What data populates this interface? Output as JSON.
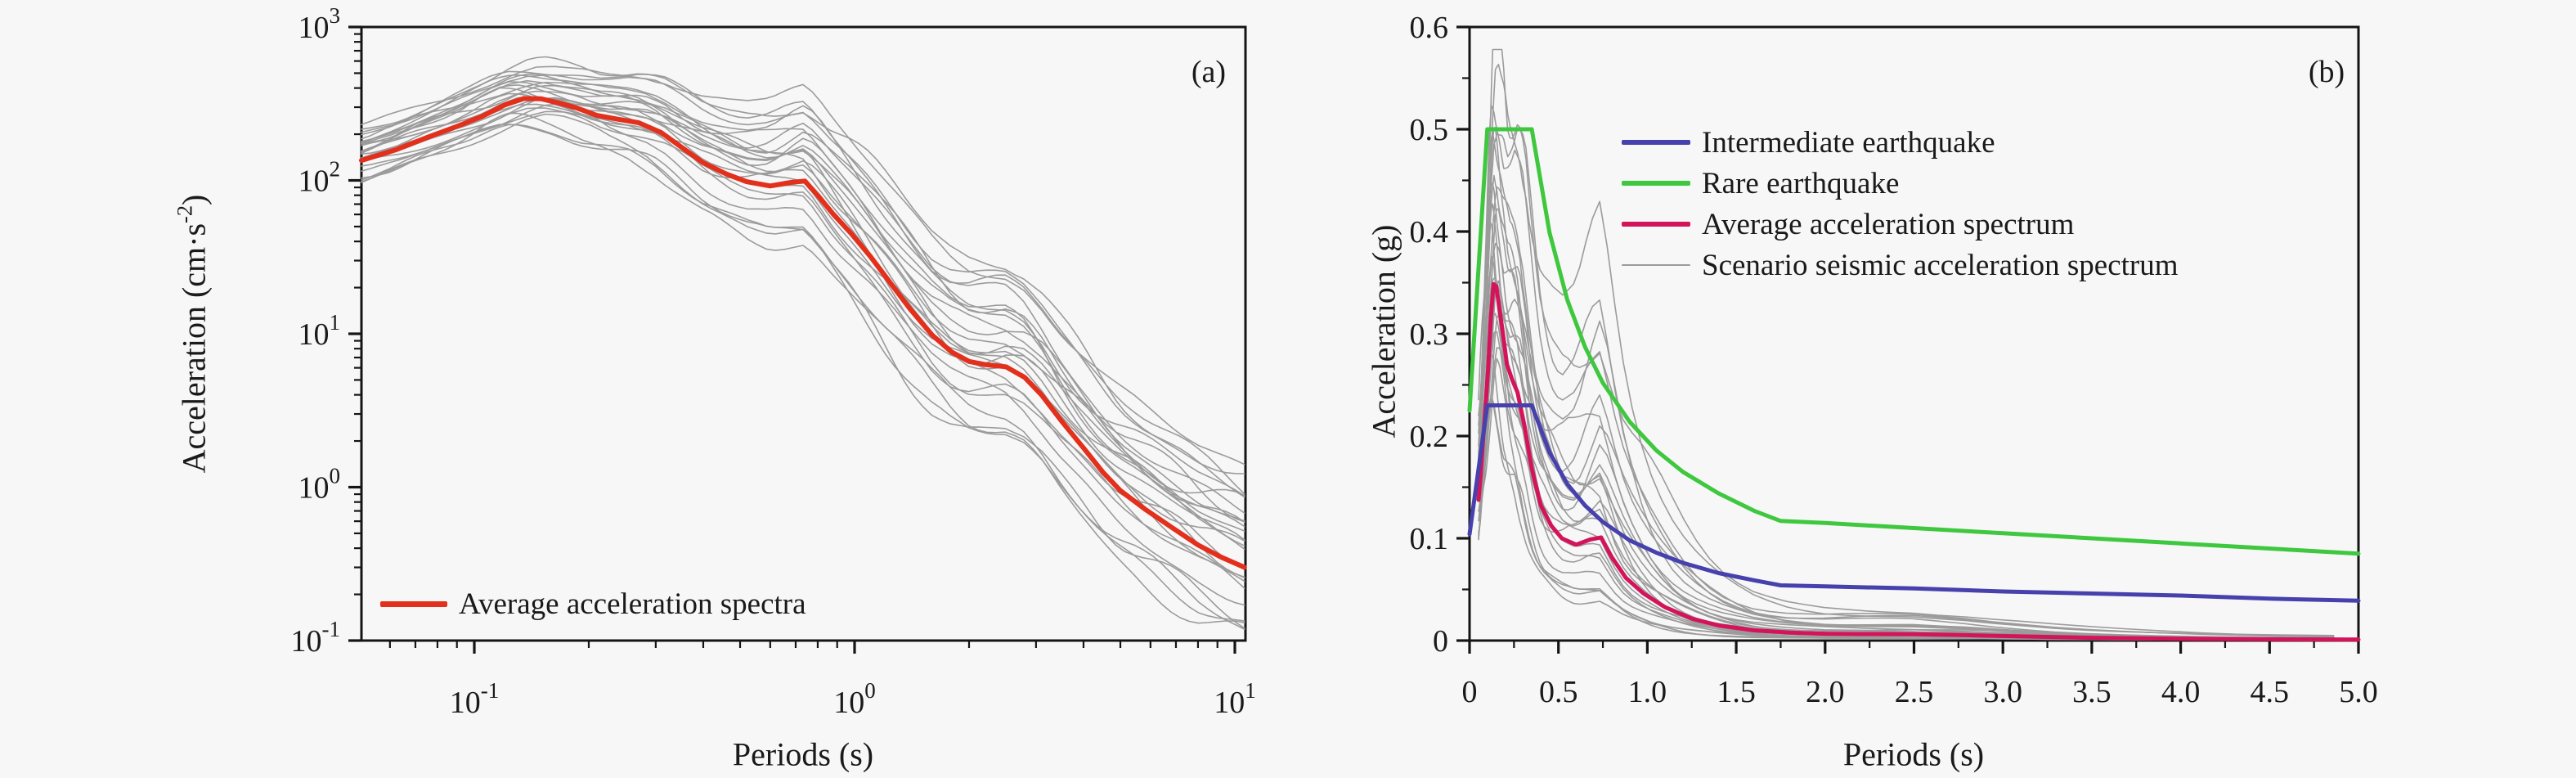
{
  "figure": {
    "background": "#f7f7f7",
    "axis_color": "#151515",
    "text_color": "#1a1a1a",
    "scenario_color": "#9b9b9b"
  },
  "panel_a": {
    "tag": "(a)",
    "xlabel": "Periods (s)",
    "ylabel_pre": "Acceleration (cm·s",
    "ylabel_sup": "-2",
    "ylabel_post": ")",
    "legend": {
      "label": "Average acceleration spectra",
      "color": "#e2301c"
    },
    "x_tick_exponents": [
      -1,
      0,
      1
    ],
    "y_tick_exponents": [
      -1,
      0,
      1,
      2,
      3
    ],
    "xlim": [
      0.05,
      10.6
    ],
    "ylim": [
      0.1,
      1000
    ]
  },
  "panel_b": {
    "tag": "(b)",
    "xlabel": "Periods (s)",
    "ylabel": "Acceleration (g)",
    "x_ticks": [
      "0",
      "0.5",
      "1.0",
      "1.5",
      "2.0",
      "2.5",
      "3.0",
      "3.5",
      "4.0",
      "4.5",
      "5.0"
    ],
    "y_ticks": [
      "0",
      "0.1",
      "0.2",
      "0.3",
      "0.4",
      "0.5",
      "0.6"
    ],
    "xlim": [
      0,
      5
    ],
    "ylim": [
      0,
      0.6
    ],
    "legend": [
      {
        "label": "Intermediate earthquake",
        "color": "#4741ad",
        "thickness": 6
      },
      {
        "label": "Rare earthquake",
        "color": "#3fc83f",
        "thickness": 6
      },
      {
        "label": "Average acceleration spectrum",
        "color": "#d4145a",
        "thickness": 6
      },
      {
        "label": "Scenario seismic acceleration spectrum",
        "color": "#9b9b9b",
        "thickness": 2
      }
    ]
  },
  "chart_data": [
    {
      "type": "line",
      "panel": "a",
      "xscale": "log",
      "yscale": "log",
      "xlabel": "Periods (s)",
      "ylabel": "Acceleration (cm.s-2)",
      "xlim": [
        0.05,
        10.6
      ],
      "ylim": [
        0.1,
        1000
      ],
      "grid": false,
      "legend_position": "lower-left",
      "series": [
        {
          "name": "Average acceleration spectra",
          "color": "#e2301c",
          "x": [
            0.0505,
            0.062,
            0.075,
            0.09,
            0.105,
            0.12,
            0.135,
            0.15,
            0.165,
            0.185,
            0.21,
            0.24,
            0.27,
            0.31,
            0.35,
            0.4,
            0.46,
            0.52,
            0.6,
            0.68,
            0.74,
            0.8,
            0.88,
            0.98,
            1.1,
            1.25,
            1.4,
            1.6,
            1.8,
            2.0,
            2.2,
            2.5,
            2.8,
            3.1,
            3.5,
            4.0,
            4.5,
            5.0,
            5.8,
            6.8,
            8.0,
            9.2,
            10.6
          ],
          "y": [
            135,
            158,
            190,
            225,
            262,
            310,
            342,
            340,
            322,
            298,
            265,
            250,
            238,
            205,
            165,
            130,
            110,
            98,
            92,
            97,
            99,
            80,
            60,
            45,
            32,
            21,
            14.5,
            9.8,
            7.6,
            6.6,
            6.3,
            6.1,
            5.2,
            4.0,
            2.7,
            1.8,
            1.25,
            0.95,
            0.72,
            0.55,
            0.42,
            0.35,
            0.3
          ]
        },
        {
          "name": "Scenario seismic acceleration spectra (ensemble, approximated)",
          "color": "#9b9b9b",
          "count": 26,
          "seed": 11,
          "log_offset_range": [
            -0.5,
            0.72
          ],
          "note": "about 26 thin gray spectra spread around the average; spread grows with period"
        }
      ]
    },
    {
      "type": "line",
      "panel": "b",
      "xscale": "linear",
      "yscale": "linear",
      "xlabel": "Periods (s)",
      "ylabel": "Acceleration (g)",
      "xlim": [
        0,
        5
      ],
      "ylim": [
        0,
        0.6
      ],
      "grid": false,
      "legend_position": "upper-right",
      "series": [
        {
          "name": "Intermediate earthquake",
          "color": "#4741ad",
          "x": [
            0,
            0.1,
            0.35,
            0.45,
            0.55,
            0.65,
            0.75,
            0.9,
            1.05,
            1.2,
            1.4,
            1.6,
            1.75,
            2.0,
            2.5,
            3.0,
            3.5,
            4.0,
            4.5,
            5.0
          ],
          "y": [
            0.104,
            0.23,
            0.23,
            0.184,
            0.153,
            0.132,
            0.116,
            0.098,
            0.086,
            0.076,
            0.066,
            0.059,
            0.054,
            0.053,
            0.051,
            0.048,
            0.046,
            0.044,
            0.041,
            0.039
          ]
        },
        {
          "name": "Rare earthquake",
          "color": "#3fc83f",
          "x": [
            0,
            0.1,
            0.35,
            0.45,
            0.55,
            0.65,
            0.75,
            0.9,
            1.05,
            1.2,
            1.4,
            1.6,
            1.75,
            2.0,
            2.5,
            3.0,
            3.5,
            4.0,
            4.5,
            5.0
          ],
          "y": [
            0.225,
            0.5,
            0.5,
            0.399,
            0.333,
            0.287,
            0.252,
            0.214,
            0.186,
            0.165,
            0.144,
            0.127,
            0.117,
            0.115,
            0.11,
            0.105,
            0.1,
            0.095,
            0.09,
            0.085
          ]
        },
        {
          "name": "Average acceleration spectrum",
          "color": "#d4145a",
          "derived_from": "panel a average divided by 981 (cm/s2 to g)"
        },
        {
          "name": "Scenario seismic acceleration spectrum",
          "color": "#9b9b9b",
          "derived_from": "panel a scenario ensemble divided by 981 (cm/s2 to g)"
        }
      ]
    }
  ]
}
